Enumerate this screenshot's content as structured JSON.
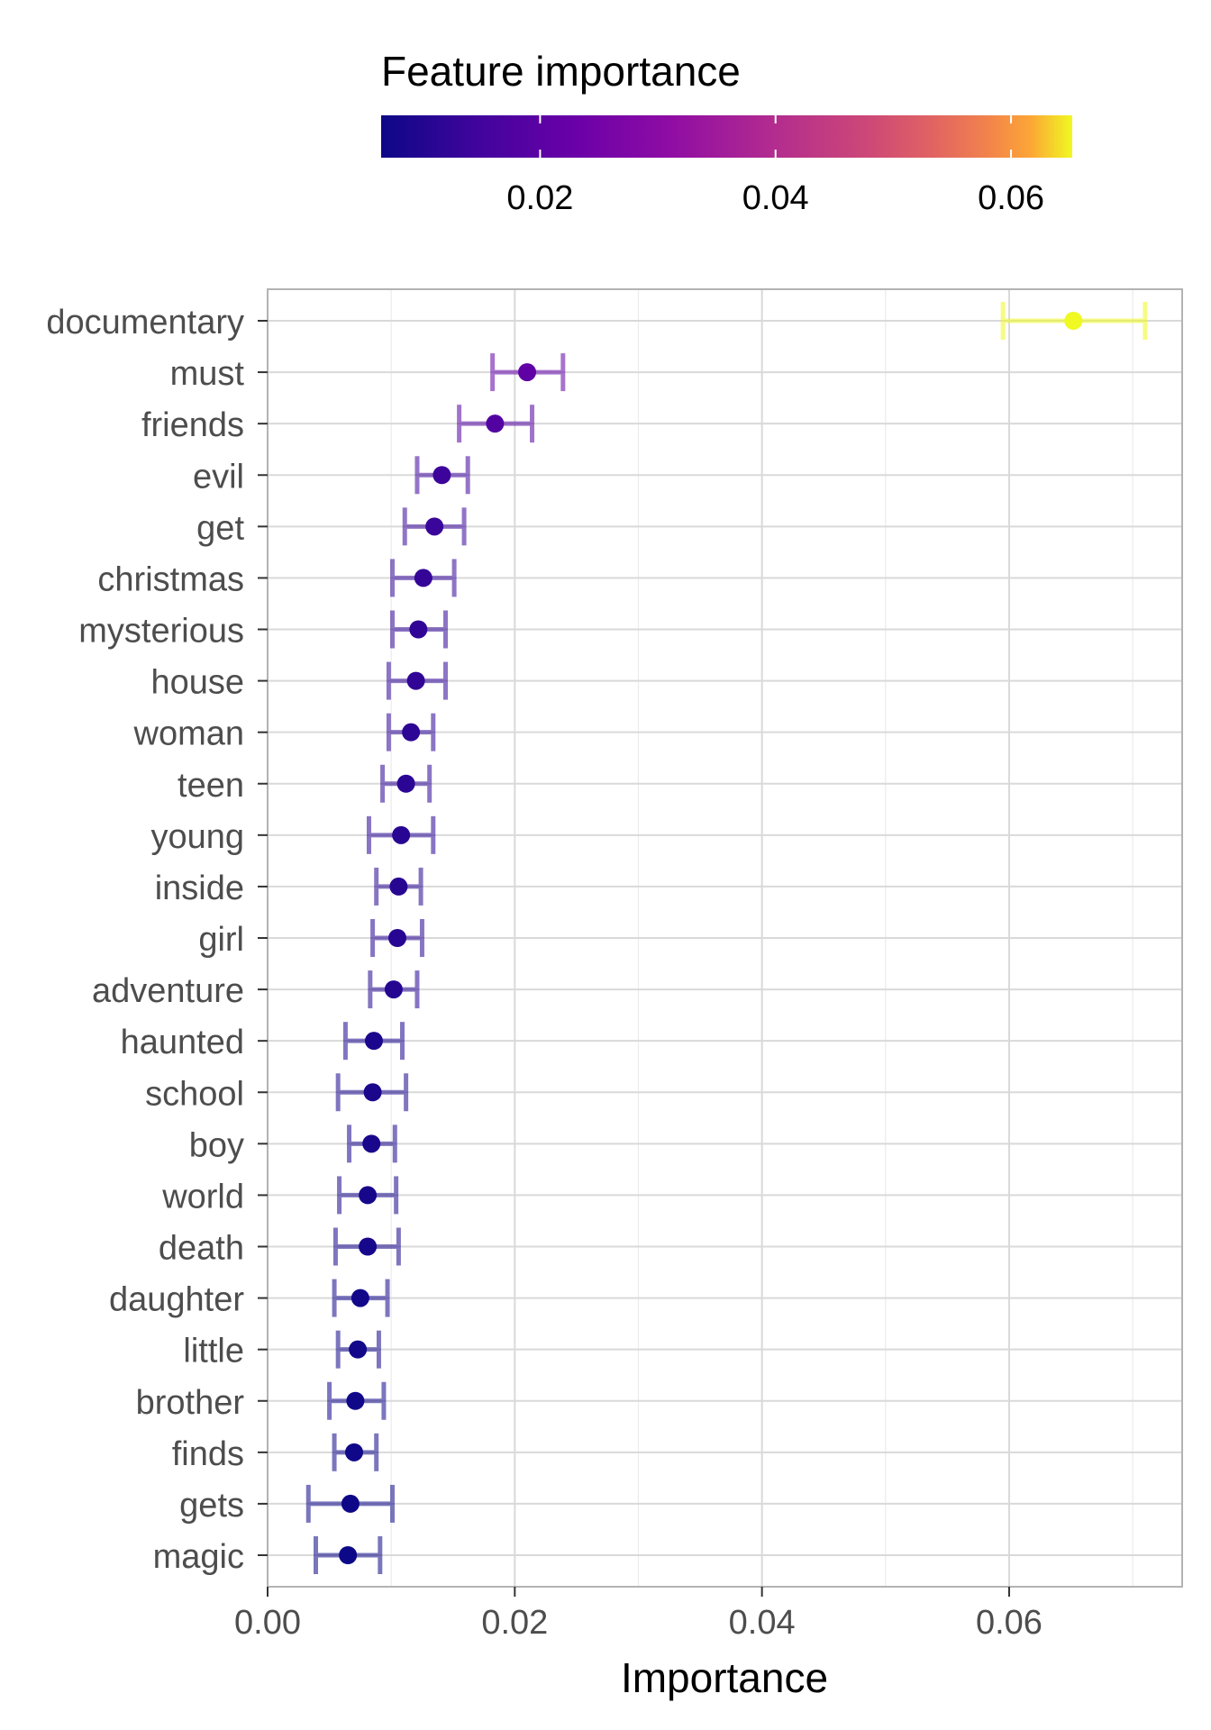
{
  "chart_data": {
    "type": "scatter",
    "subtype": "dot-with-error-bars",
    "xlabel": "Importance",
    "ylabel": "",
    "xlim": [
      0,
      0.074
    ],
    "x_ticks": [
      0.0,
      0.02,
      0.04,
      0.06
    ],
    "x_tick_labels": [
      "0.00",
      "0.02",
      "0.04",
      "0.06"
    ],
    "grid": true,
    "legend": {
      "title": "Feature importance",
      "type": "colorbar",
      "placement": "top",
      "range": [
        0.0065,
        0.0652
      ],
      "ticks": [
        0.02,
        0.04,
        0.06
      ],
      "tick_labels": [
        "0.02",
        "0.04",
        "0.06"
      ],
      "palette": "plasma"
    },
    "categories": [
      "documentary",
      "must",
      "friends",
      "evil",
      "get",
      "christmas",
      "mysterious",
      "house",
      "woman",
      "teen",
      "young",
      "inside",
      "girl",
      "adventure",
      "haunted",
      "school",
      "boy",
      "world",
      "death",
      "daughter",
      "little",
      "brother",
      "finds",
      "gets",
      "magic"
    ],
    "values": [
      0.0652,
      0.021,
      0.0184,
      0.0141,
      0.0135,
      0.0126,
      0.0122,
      0.012,
      0.0116,
      0.0112,
      0.0108,
      0.0106,
      0.0105,
      0.0102,
      0.0086,
      0.0085,
      0.0084,
      0.0081,
      0.0081,
      0.0075,
      0.0073,
      0.0071,
      0.007,
      0.0067,
      0.0065
    ],
    "lower": [
      0.0595,
      0.0182,
      0.0155,
      0.0121,
      0.0111,
      0.0101,
      0.0101,
      0.0098,
      0.0098,
      0.0093,
      0.0082,
      0.0088,
      0.0085,
      0.0083,
      0.0063,
      0.0057,
      0.0066,
      0.0058,
      0.0055,
      0.0054,
      0.0057,
      0.005,
      0.0054,
      0.0033,
      0.0039
    ],
    "upper": [
      0.071,
      0.0239,
      0.0214,
      0.0162,
      0.0159,
      0.0151,
      0.0144,
      0.0144,
      0.0134,
      0.0131,
      0.0134,
      0.0124,
      0.0125,
      0.0121,
      0.0109,
      0.0112,
      0.0103,
      0.0104,
      0.0106,
      0.0097,
      0.009,
      0.0094,
      0.0088,
      0.0101,
      0.0091
    ]
  }
}
